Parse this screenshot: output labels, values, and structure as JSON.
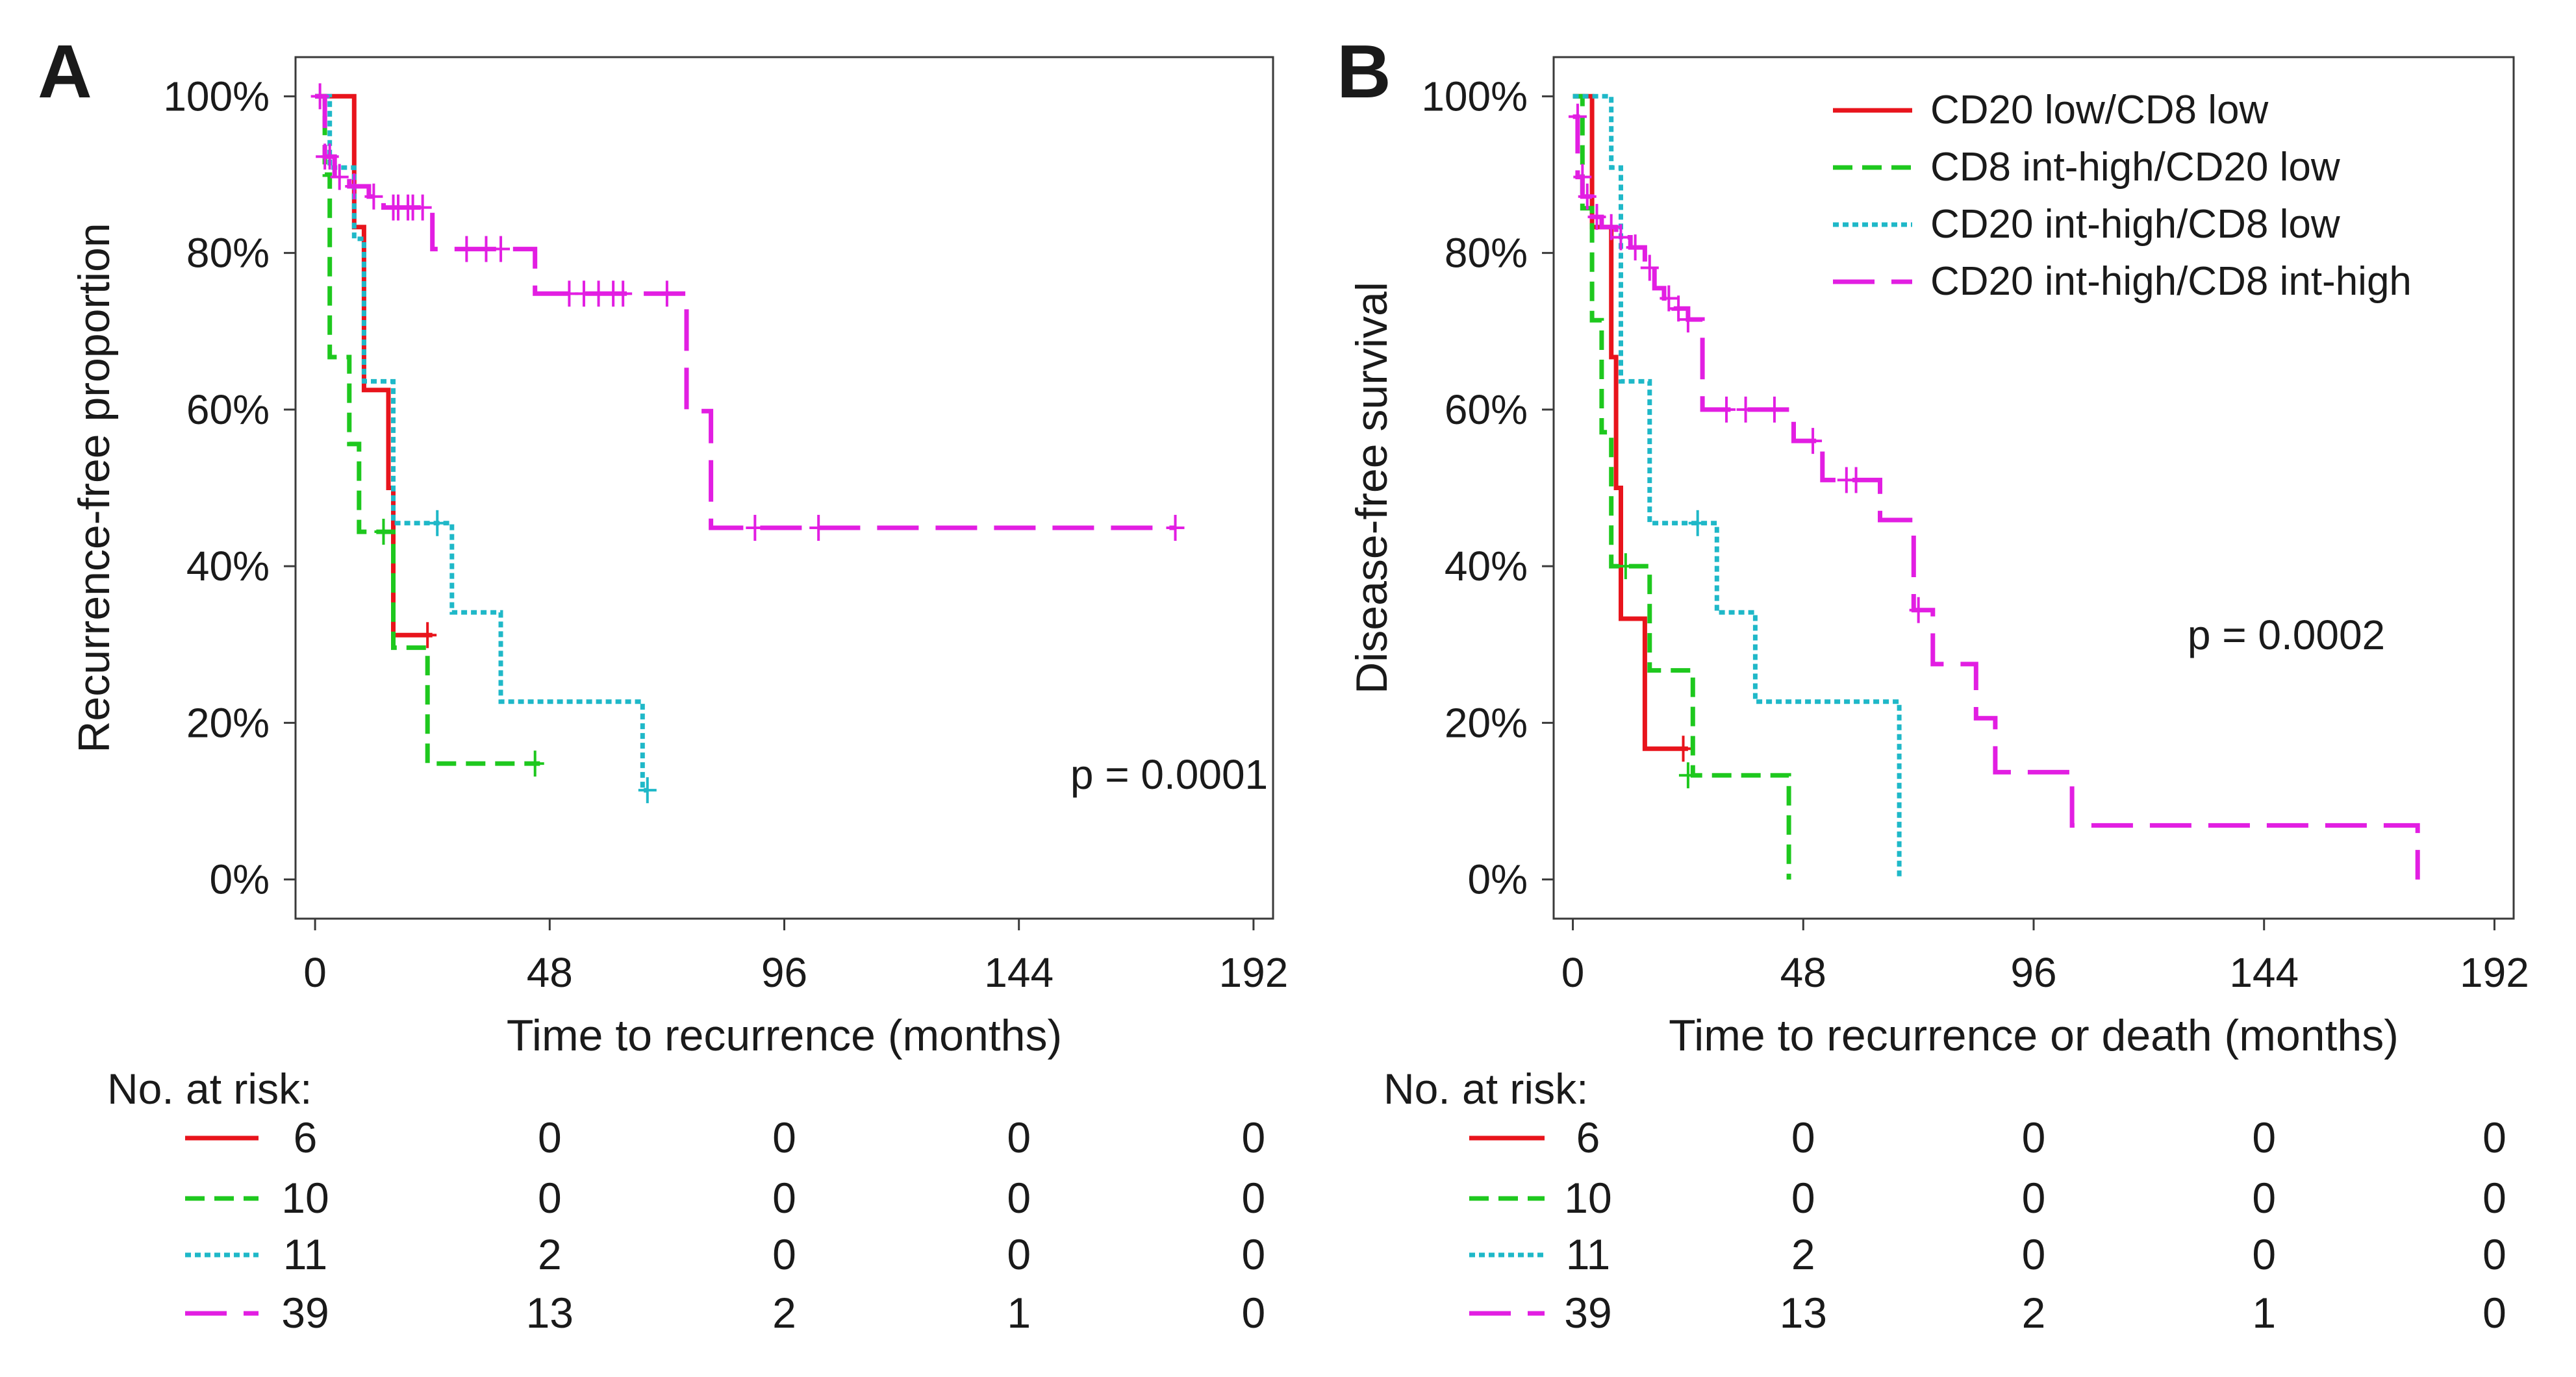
{
  "chart_data": [
    {
      "type": "line",
      "panel_label": "A",
      "ylabel": "Recurrence-free proportion",
      "xlabel": "Time to recurrence (months)",
      "xlim": [
        -4,
        196
      ],
      "ylim": [
        -0.05,
        1.05
      ],
      "x_ticks": [
        0,
        48,
        96,
        144,
        192
      ],
      "x_tick_labels": [
        "0",
        "48",
        "96",
        "144",
        "192"
      ],
      "y_ticks": [
        0,
        0.2,
        0.4,
        0.6,
        0.8,
        1.0
      ],
      "y_tick_labels": [
        "0%",
        "20%",
        "40%",
        "60%",
        "80%",
        "100%"
      ],
      "annotation": "p = 0.0001",
      "series": [
        {
          "name": "CD20 low/CD8 low",
          "color": "#e8141c",
          "dash": "solid",
          "steps": [
            [
              0,
              1.0
            ],
            [
              8,
              0.833
            ],
            [
              10,
              0.625
            ],
            [
              15,
              0.5
            ],
            [
              16,
              0.312
            ],
            [
              24,
              0.312
            ]
          ],
          "censors": [
            [
              23,
              0.312
            ]
          ]
        },
        {
          "name": "CD8 int-high/CD20 low",
          "color": "#1ec81e",
          "dash": "dash",
          "steps": [
            [
              0,
              1.0
            ],
            [
              2,
              0.9
            ],
            [
              3,
              0.667
            ],
            [
              7,
              0.556
            ],
            [
              9,
              0.444
            ],
            [
              16,
              0.296
            ],
            [
              23,
              0.148
            ],
            [
              46,
              0.148
            ]
          ],
          "censors": [
            [
              14,
              0.444
            ],
            [
              45,
              0.148
            ]
          ]
        },
        {
          "name": "CD20 int-high/CD8 low",
          "color": "#1fb8c8",
          "dash": "dot",
          "steps": [
            [
              0,
              1.0
            ],
            [
              3,
              0.909
            ],
            [
              8,
              0.818
            ],
            [
              10,
              0.636
            ],
            [
              16,
              0.455
            ],
            [
              28,
              0.341
            ],
            [
              38,
              0.227
            ],
            [
              67,
              0.114
            ],
            [
              68,
              0.114
            ]
          ],
          "censors": [
            [
              25,
              0.455
            ],
            [
              68,
              0.114
            ]
          ]
        },
        {
          "name": "CD20 int-high/CD8 int-high",
          "color": "#e21ee2",
          "dash": "longdash",
          "steps": [
            [
              0,
              1.0
            ],
            [
              2,
              0.923
            ],
            [
              4,
              0.897
            ],
            [
              7,
              0.885
            ],
            [
              11,
              0.872
            ],
            [
              14,
              0.858
            ],
            [
              24,
              0.805
            ],
            [
              45,
              0.748
            ],
            [
              76,
              0.598
            ],
            [
              81,
              0.449
            ],
            [
              176,
              0.449
            ]
          ],
          "censors": [
            [
              1,
              1.0
            ],
            [
              2,
              0.923
            ],
            [
              3,
              0.923
            ],
            [
              5,
              0.897
            ],
            [
              8,
              0.885
            ],
            [
              12,
              0.872
            ],
            [
              16,
              0.858
            ],
            [
              17,
              0.858
            ],
            [
              19,
              0.858
            ],
            [
              20,
              0.858
            ],
            [
              22,
              0.858
            ],
            [
              31,
              0.805
            ],
            [
              35,
              0.805
            ],
            [
              38,
              0.805
            ],
            [
              52,
              0.748
            ],
            [
              55,
              0.748
            ],
            [
              58,
              0.748
            ],
            [
              61,
              0.748
            ],
            [
              63,
              0.748
            ],
            [
              72,
              0.748
            ],
            [
              90,
              0.449
            ],
            [
              103,
              0.449
            ],
            [
              176,
              0.449
            ]
          ]
        }
      ],
      "risk_table": {
        "title": "No. at risk:",
        "rows": [
          {
            "color": "#e8141c",
            "dash": "solid",
            "values": [
              "6",
              "0",
              "0",
              "0",
              "0"
            ]
          },
          {
            "color": "#1ec81e",
            "dash": "dash",
            "values": [
              "10",
              "0",
              "0",
              "0",
              "0"
            ]
          },
          {
            "color": "#1fb8c8",
            "dash": "dot",
            "values": [
              "11",
              "2",
              "0",
              "0",
              "0"
            ]
          },
          {
            "color": "#e21ee2",
            "dash": "longdash",
            "values": [
              "39",
              "13",
              "2",
              "1",
              "0"
            ]
          }
        ]
      }
    },
    {
      "type": "line",
      "panel_label": "B",
      "ylabel": "Disease-free survival",
      "xlabel": "Time to recurrence or death (months)",
      "xlim": [
        -4,
        196
      ],
      "ylim": [
        -0.05,
        1.05
      ],
      "x_ticks": [
        0,
        48,
        96,
        144,
        192
      ],
      "x_tick_labels": [
        "0",
        "48",
        "96",
        "144",
        "192"
      ],
      "y_ticks": [
        0,
        0.2,
        0.4,
        0.6,
        0.8,
        1.0
      ],
      "y_tick_labels": [
        "0%",
        "20%",
        "40%",
        "60%",
        "80%",
        "100%"
      ],
      "annotation": "p = 0.0002",
      "legend": {
        "position": "top-right",
        "entries": [
          "CD20 low/CD8 low",
          "CD8 int-high/CD20 low",
          "CD20 int-high/CD8 low",
          "CD20 int-high/CD8 int-high"
        ]
      },
      "series": [
        {
          "name": "CD20 low/CD8 low",
          "color": "#e8141c",
          "dash": "solid",
          "steps": [
            [
              0,
              1.0
            ],
            [
              4,
              0.833
            ],
            [
              8,
              0.667
            ],
            [
              9,
              0.5
            ],
            [
              10,
              0.333
            ],
            [
              15,
              0.167
            ],
            [
              24,
              0.167
            ]
          ],
          "censors": [
            [
              23,
              0.167
            ]
          ]
        },
        {
          "name": "CD8 int-high/CD20 low",
          "color": "#1ec81e",
          "dash": "dash",
          "steps": [
            [
              0,
              1.0
            ],
            [
              2,
              0.857
            ],
            [
              4,
              0.714
            ],
            [
              6,
              0.571
            ],
            [
              8,
              0.4
            ],
            [
              16,
              0.267
            ],
            [
              25,
              0.133
            ],
            [
              45,
              0.0
            ]
          ],
          "censors": [
            [
              11,
              0.4
            ],
            [
              24,
              0.133
            ]
          ]
        },
        {
          "name": "CD20 int-high/CD8 low",
          "color": "#1fb8c8",
          "dash": "dot",
          "steps": [
            [
              0,
              1.0
            ],
            [
              8,
              0.909
            ],
            [
              10,
              0.636
            ],
            [
              16,
              0.455
            ],
            [
              30,
              0.341
            ],
            [
              38,
              0.227
            ],
            [
              68,
              0.0
            ]
          ],
          "censors": [
            [
              26,
              0.455
            ]
          ]
        },
        {
          "name": "CD20 int-high/CD8 int-high",
          "color": "#e21ee2",
          "dash": "longdash",
          "steps": [
            [
              0,
              0.974
            ],
            [
              1,
              0.897
            ],
            [
              2,
              0.872
            ],
            [
              4,
              0.846
            ],
            [
              6,
              0.833
            ],
            [
              9,
              0.82
            ],
            [
              12,
              0.807
            ],
            [
              15,
              0.781
            ],
            [
              17,
              0.755
            ],
            [
              19,
              0.742
            ],
            [
              21,
              0.729
            ],
            [
              24,
              0.715
            ],
            [
              27,
              0.6
            ],
            [
              46,
              0.56
            ],
            [
              52,
              0.51
            ],
            [
              64,
              0.459
            ],
            [
              71,
              0.344
            ],
            [
              75,
              0.275
            ],
            [
              84,
              0.206
            ],
            [
              88,
              0.137
            ],
            [
              104,
              0.069
            ],
            [
              176,
              0.0
            ]
          ],
          "censors": [
            [
              1,
              0.974
            ],
            [
              2,
              0.897
            ],
            [
              3,
              0.872
            ],
            [
              5,
              0.846
            ],
            [
              8,
              0.833
            ],
            [
              10,
              0.82
            ],
            [
              13,
              0.807
            ],
            [
              16,
              0.781
            ],
            [
              20,
              0.742
            ],
            [
              22,
              0.729
            ],
            [
              24,
              0.715
            ],
            [
              32,
              0.6
            ],
            [
              36,
              0.6
            ],
            [
              42,
              0.6
            ],
            [
              50,
              0.56
            ],
            [
              57,
              0.51
            ],
            [
              59,
              0.51
            ],
            [
              72,
              0.344
            ]
          ]
        }
      ],
      "risk_table": {
        "title": "No. at risk:",
        "rows": [
          {
            "color": "#e8141c",
            "dash": "solid",
            "values": [
              "6",
              "0",
              "0",
              "0",
              "0"
            ]
          },
          {
            "color": "#1ec81e",
            "dash": "dash",
            "values": [
              "10",
              "0",
              "0",
              "0",
              "0"
            ]
          },
          {
            "color": "#1fb8c8",
            "dash": "dot",
            "values": [
              "11",
              "2",
              "0",
              "0",
              "0"
            ]
          },
          {
            "color": "#e21ee2",
            "dash": "longdash",
            "values": [
              "39",
              "13",
              "2",
              "1",
              "0"
            ]
          }
        ]
      }
    }
  ]
}
